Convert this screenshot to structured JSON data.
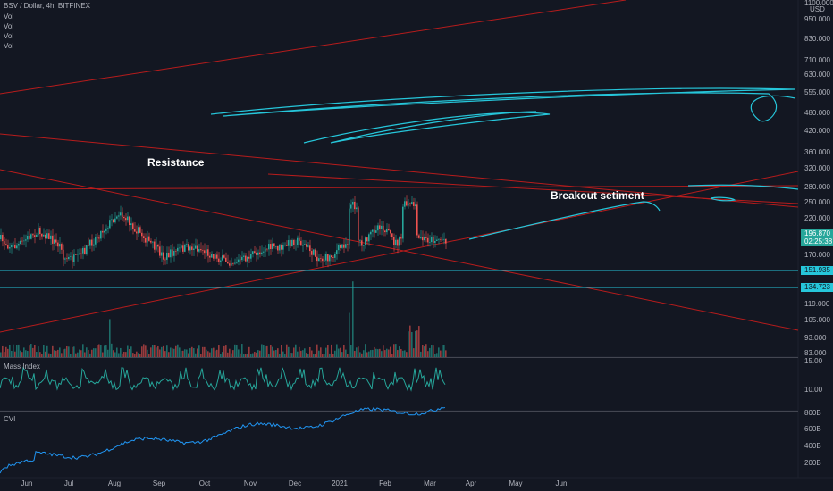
{
  "header": {
    "symbol": "BSV / Dollar, 4h, BITFINEX",
    "indicators": [
      "Vol",
      "Vol",
      "Vol",
      "Vol"
    ]
  },
  "annotations": {
    "resistance": "Resistance",
    "breakout": "Breakout setiment"
  },
  "price_axis": {
    "unit": "USD",
    "labels": [
      "1100.000",
      "950.000",
      "830.000",
      "710.000",
      "630.000",
      "555.000",
      "480.000",
      "420.000",
      "360.000",
      "320.000",
      "280.000",
      "250.000",
      "220.000",
      "170.000",
      "119.000",
      "105.000",
      "93.000",
      "83.000"
    ],
    "last_price": "196.870",
    "countdown": "02:25:38",
    "levels": [
      "151.935",
      "134.723"
    ]
  },
  "mass_index": {
    "title": "Mass Index",
    "labels": [
      "15.00",
      "10.00"
    ]
  },
  "cvi": {
    "title": "CVI",
    "labels": [
      "800B",
      "600B",
      "400B",
      "200B"
    ]
  },
  "time_axis": {
    "labels": [
      "Jun",
      "Jul",
      "Aug",
      "Sep",
      "Oct",
      "Nov",
      "Dec",
      "2021",
      "Feb",
      "Mar",
      "Apr",
      "May",
      "Jun"
    ]
  }
}
